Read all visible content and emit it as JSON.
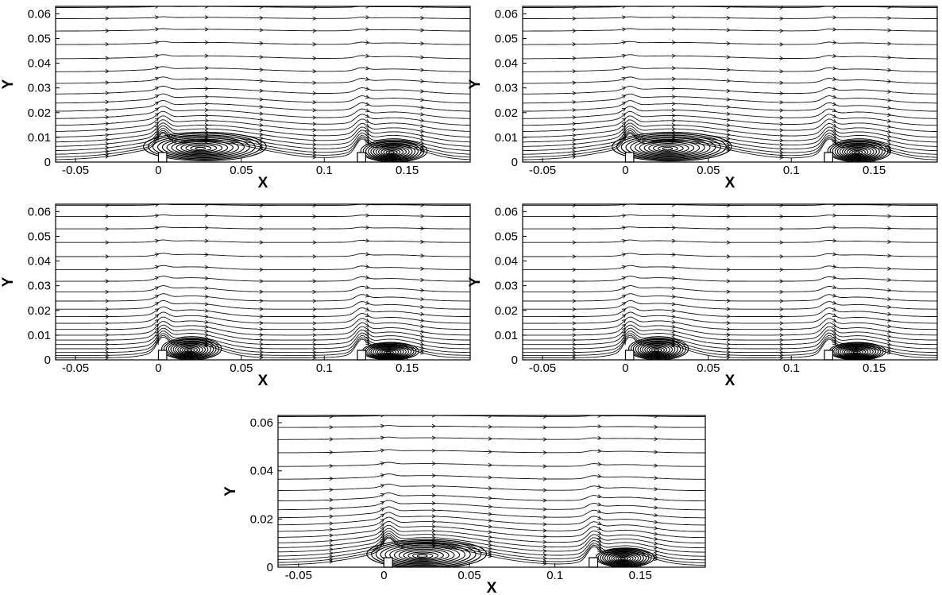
{
  "chart_data": [
    {
      "type": "streamline",
      "xlabel": "X",
      "ylabel": "Y",
      "xlim": [
        -0.062,
        0.188
      ],
      "ylim": [
        0,
        0.063
      ],
      "xticks": [
        -0.05,
        0,
        0.05,
        0.1,
        0.15
      ],
      "xtick_labels": [
        "-0.05",
        "0",
        "0.05",
        "0.1",
        "0.15"
      ],
      "yticks": [
        0,
        0.01,
        0.02,
        0.03,
        0.04,
        0.05,
        0.06
      ],
      "ytick_labels": [
        "0",
        "0.01",
        "0.02",
        "0.03",
        "0.04",
        "0.05",
        "0.06"
      ],
      "obstacles": [
        {
          "x_start": 0,
          "x_end": 0.005
        },
        {
          "x_start": 0.12,
          "x_end": 0.125
        }
      ],
      "vortices": [
        {
          "center_x": 0.028,
          "center_y": 0.0063,
          "half_width": 0.037,
          "half_height": 0.0058
        },
        {
          "center_x": 0.142,
          "center_y": 0.0045,
          "half_width": 0.02,
          "half_height": 0.0045
        }
      ]
    },
    {
      "type": "streamline",
      "xlabel": "X",
      "ylabel": "Y",
      "xlim": [
        -0.062,
        0.188
      ],
      "ylim": [
        0,
        0.063
      ],
      "xticks": [
        -0.05,
        0,
        0.05,
        0.1,
        0.15
      ],
      "xtick_labels": [
        "-0.05",
        "0",
        "0.05",
        "0.1",
        "0.15"
      ],
      "yticks": [
        0,
        0.01,
        0.02,
        0.03,
        0.04,
        0.05,
        0.06
      ],
      "ytick_labels": [
        "0",
        "0.01",
        "0.02",
        "0.03",
        "0.04",
        "0.05",
        "0.06"
      ],
      "obstacles": [
        {
          "x_start": 0,
          "x_end": 0.005
        },
        {
          "x_start": 0.12,
          "x_end": 0.125
        }
      ],
      "vortices": [
        {
          "center_x": 0.028,
          "center_y": 0.0062,
          "half_width": 0.036,
          "half_height": 0.0058
        },
        {
          "center_x": 0.141,
          "center_y": 0.0045,
          "half_width": 0.019,
          "half_height": 0.0045
        }
      ]
    },
    {
      "type": "streamline",
      "xlabel": "X",
      "ylabel": "Y",
      "xlim": [
        -0.062,
        0.188
      ],
      "ylim": [
        0,
        0.063
      ],
      "xticks": [
        -0.05,
        0,
        0.05,
        0.1,
        0.15
      ],
      "xtick_labels": [
        "-0.05",
        "0",
        "0.05",
        "0.1",
        "0.15"
      ],
      "yticks": [
        0,
        0.01,
        0.02,
        0.03,
        0.04,
        0.05,
        0.06
      ],
      "ytick_labels": [
        "0",
        "0.01",
        "0.02",
        "0.03",
        "0.04",
        "0.05",
        "0.06"
      ],
      "obstacles": [
        {
          "x_start": 0,
          "x_end": 0.005
        },
        {
          "x_start": 0.12,
          "x_end": 0.125
        }
      ],
      "vortices": [
        {
          "center_x": 0.02,
          "center_y": 0.0045,
          "half_width": 0.018,
          "half_height": 0.0045
        },
        {
          "center_x": 0.14,
          "center_y": 0.0035,
          "half_width": 0.017,
          "half_height": 0.0035
        }
      ]
    },
    {
      "type": "streamline",
      "xlabel": "X",
      "ylabel": "Y",
      "xlim": [
        -0.062,
        0.188
      ],
      "ylim": [
        0,
        0.063
      ],
      "xticks": [
        -0.05,
        0,
        0.05,
        0.1,
        0.15
      ],
      "xtick_labels": [
        "-0.05",
        "0",
        "0.05",
        "0.1",
        "0.15"
      ],
      "yticks": [
        0,
        0.01,
        0.02,
        0.03,
        0.04,
        0.05,
        0.06
      ],
      "ytick_labels": [
        "0",
        "0.01",
        "0.02",
        "0.03",
        "0.04",
        "0.05",
        "0.06"
      ],
      "obstacles": [
        {
          "x_start": 0,
          "x_end": 0.005
        },
        {
          "x_start": 0.12,
          "x_end": 0.125
        }
      ],
      "vortices": [
        {
          "center_x": 0.02,
          "center_y": 0.0045,
          "half_width": 0.018,
          "half_height": 0.0045
        },
        {
          "center_x": 0.14,
          "center_y": 0.0035,
          "half_width": 0.017,
          "half_height": 0.0035
        }
      ]
    },
    {
      "type": "streamline",
      "xlabel": "X",
      "ylabel": "Y",
      "xlim": [
        -0.062,
        0.188
      ],
      "ylim": [
        0,
        0.063
      ],
      "xticks": [
        -0.05,
        0,
        0.05,
        0.1,
        0.15
      ],
      "xtick_labels": [
        "-0.05",
        "0",
        "0.05",
        "0.1",
        "0.15"
      ],
      "yticks": [
        0,
        0.02,
        0.04,
        0.06
      ],
      "ytick_labels": [
        "0",
        "0.02",
        "0.04",
        "0.06"
      ],
      "obstacles": [
        {
          "x_start": 0,
          "x_end": 0.005
        },
        {
          "x_start": 0.12,
          "x_end": 0.125
        }
      ],
      "vortices": [
        {
          "center_x": 0.025,
          "center_y": 0.0055,
          "half_width": 0.035,
          "half_height": 0.006
        },
        {
          "center_x": 0.141,
          "center_y": 0.004,
          "half_width": 0.017,
          "half_height": 0.004
        }
      ]
    }
  ]
}
